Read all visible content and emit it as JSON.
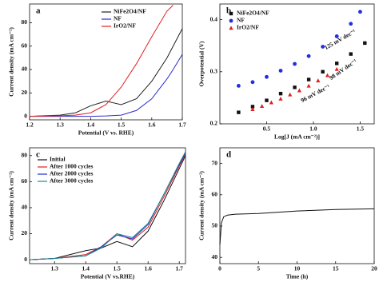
{
  "chart_data": [
    {
      "type": "line",
      "label": "a",
      "xlabel": "Potential (V vs. RHE)",
      "ylabel": "Current density (mA cm⁻²)",
      "xlim": [
        1.2,
        1.7
      ],
      "xticks": [
        1.2,
        1.3,
        1.4,
        1.5,
        1.6,
        1.7
      ],
      "ylim": [
        -3,
        96
      ],
      "yticks": [
        0,
        20,
        40,
        60,
        80
      ],
      "legend": "upper left",
      "x": [
        1.2,
        1.3,
        1.35,
        1.4,
        1.45,
        1.5,
        1.55,
        1.6,
        1.65,
        1.67,
        1.7
      ],
      "series": [
        {
          "name": "NiFe2O4/NF",
          "color": "#222222",
          "values": [
            0,
            1,
            3,
            9,
            13,
            10,
            15,
            30,
            50,
            60,
            75
          ]
        },
        {
          "name": "NF",
          "color": "#2b2bd0",
          "values": [
            0,
            0,
            0,
            0,
            0.3,
            1,
            5,
            15,
            32,
            40,
            53
          ]
        },
        {
          "name": "IrO2/NF",
          "color": "#e02020",
          "values": [
            0,
            0.5,
            1,
            3,
            10,
            25,
            45,
            68,
            90,
            95,
            null
          ]
        }
      ]
    },
    {
      "type": "scatter",
      "label": "b",
      "xlabel": "Log[J (mA cm⁻²)]",
      "ylabel": "Overpotential (V)",
      "xlim": [
        0,
        1.65
      ],
      "xticks": [
        {
          "value": 0.5,
          "label": "0.5"
        },
        {
          "value": 1,
          "label": "1.0"
        },
        {
          "value": 1.5,
          "label": "1.5"
        }
      ],
      "ylim": [
        0.2,
        0.43
      ],
      "yticks": [
        0.2,
        0.3,
        0.4
      ],
      "legend": "upper left",
      "annotations": [
        "125 mV dec⁻¹",
        "98 mV dec⁻¹",
        "96 mV dec⁻¹"
      ],
      "series": [
        {
          "name": "NiFe2O4/NF",
          "color": "#111111",
          "marker": "square",
          "x": [
            0.2,
            0.35,
            0.5,
            0.65,
            0.8,
            0.95,
            1.1,
            1.25,
            1.4,
            1.55
          ],
          "values": [
            0.222,
            0.233,
            0.245,
            0.258,
            0.27,
            0.285,
            0.3,
            0.316,
            0.334,
            0.355
          ]
        },
        {
          "name": "NF",
          "color": "#1f2fe0",
          "marker": "circle",
          "x": [
            0.2,
            0.35,
            0.5,
            0.65,
            0.8,
            0.95,
            1.1,
            1.25,
            1.4,
            1.5
          ],
          "values": [
            0.273,
            0.28,
            0.29,
            0.302,
            0.315,
            0.33,
            0.348,
            0.368,
            0.392,
            0.415
          ]
        },
        {
          "name": "IrO2/NF",
          "color": "#e02020",
          "marker": "triangle",
          "x": [
            0.35,
            0.45,
            0.55,
            0.65,
            0.75,
            0.85,
            0.95,
            1.05,
            1.15,
            1.25
          ],
          "values": [
            0.228,
            0.234,
            0.241,
            0.248,
            0.256,
            0.264,
            0.273,
            0.283,
            0.293,
            0.305
          ]
        }
      ]
    },
    {
      "type": "line",
      "label": "c",
      "xlabel": "Potential (V vs.RHE)",
      "ylabel": "Current density (mA cm⁻²)",
      "xlim": [
        1.22,
        1.72
      ],
      "xticks": [
        1.3,
        1.4,
        1.5,
        1.6,
        1.7
      ],
      "ylim": [
        -3,
        86
      ],
      "yticks": [
        0,
        20,
        40,
        60,
        80
      ],
      "legend": "upper left",
      "x": [
        1.22,
        1.3,
        1.4,
        1.45,
        1.5,
        1.55,
        1.6,
        1.65,
        1.7,
        1.72
      ],
      "series": [
        {
          "name": "Initial",
          "color": "#111111",
          "values": [
            0,
            1,
            7,
            9,
            14,
            10,
            22,
            45,
            70,
            80
          ]
        },
        {
          "name": "After 1000 cycles",
          "color": "#e02020",
          "values": [
            0,
            1,
            4,
            10,
            20,
            15,
            25,
            48,
            72,
            81
          ]
        },
        {
          "name": "After 2000 cycles",
          "color": "#2030d0",
          "values": [
            0,
            1,
            3,
            10,
            19,
            16,
            27,
            50,
            73,
            82
          ]
        },
        {
          "name": "After 3000 cycles",
          "color": "#1a8a8a",
          "values": [
            0,
            1,
            3,
            9,
            20,
            17,
            28,
            50,
            74,
            83
          ]
        }
      ]
    },
    {
      "type": "line",
      "label": "d",
      "xlabel": "Time (h)",
      "ylabel": "Current density (mA cm⁻²)",
      "xlim": [
        0,
        20
      ],
      "xticks": [
        0,
        5,
        10,
        15,
        20
      ],
      "ylim": [
        38,
        75
      ],
      "yticks": [
        40,
        50,
        60,
        70
      ],
      "x": [
        0,
        0.2,
        0.5,
        1,
        2,
        5,
        10,
        15,
        20
      ],
      "series": [
        {
          "color": "#111111",
          "values": [
            44,
            51,
            53,
            53.5,
            53.8,
            54,
            54.8,
            55.3,
            55.5
          ]
        }
      ]
    }
  ]
}
